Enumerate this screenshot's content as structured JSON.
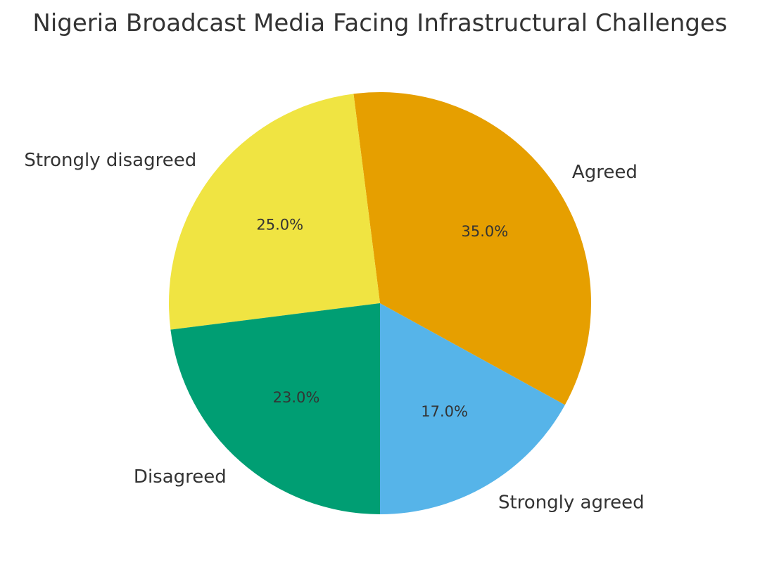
{
  "chart_data": {
    "type": "pie",
    "title": "Nigeria Broadcast Media Facing Infrastructural Challenges",
    "categories": [
      "Strongly agreed",
      "Agreed",
      "Strongly disagreed",
      "Disagreed"
    ],
    "values": [
      17,
      35,
      25,
      23
    ],
    "percent_labels": [
      "17.0%",
      "35.0%",
      "25.0%",
      "23.0%"
    ],
    "colors": [
      "#56b4e9",
      "#e69f00",
      "#f0e442",
      "#009e73"
    ],
    "start_angle_deg": 270,
    "direction": "counterclockwise",
    "legend": "none"
  }
}
